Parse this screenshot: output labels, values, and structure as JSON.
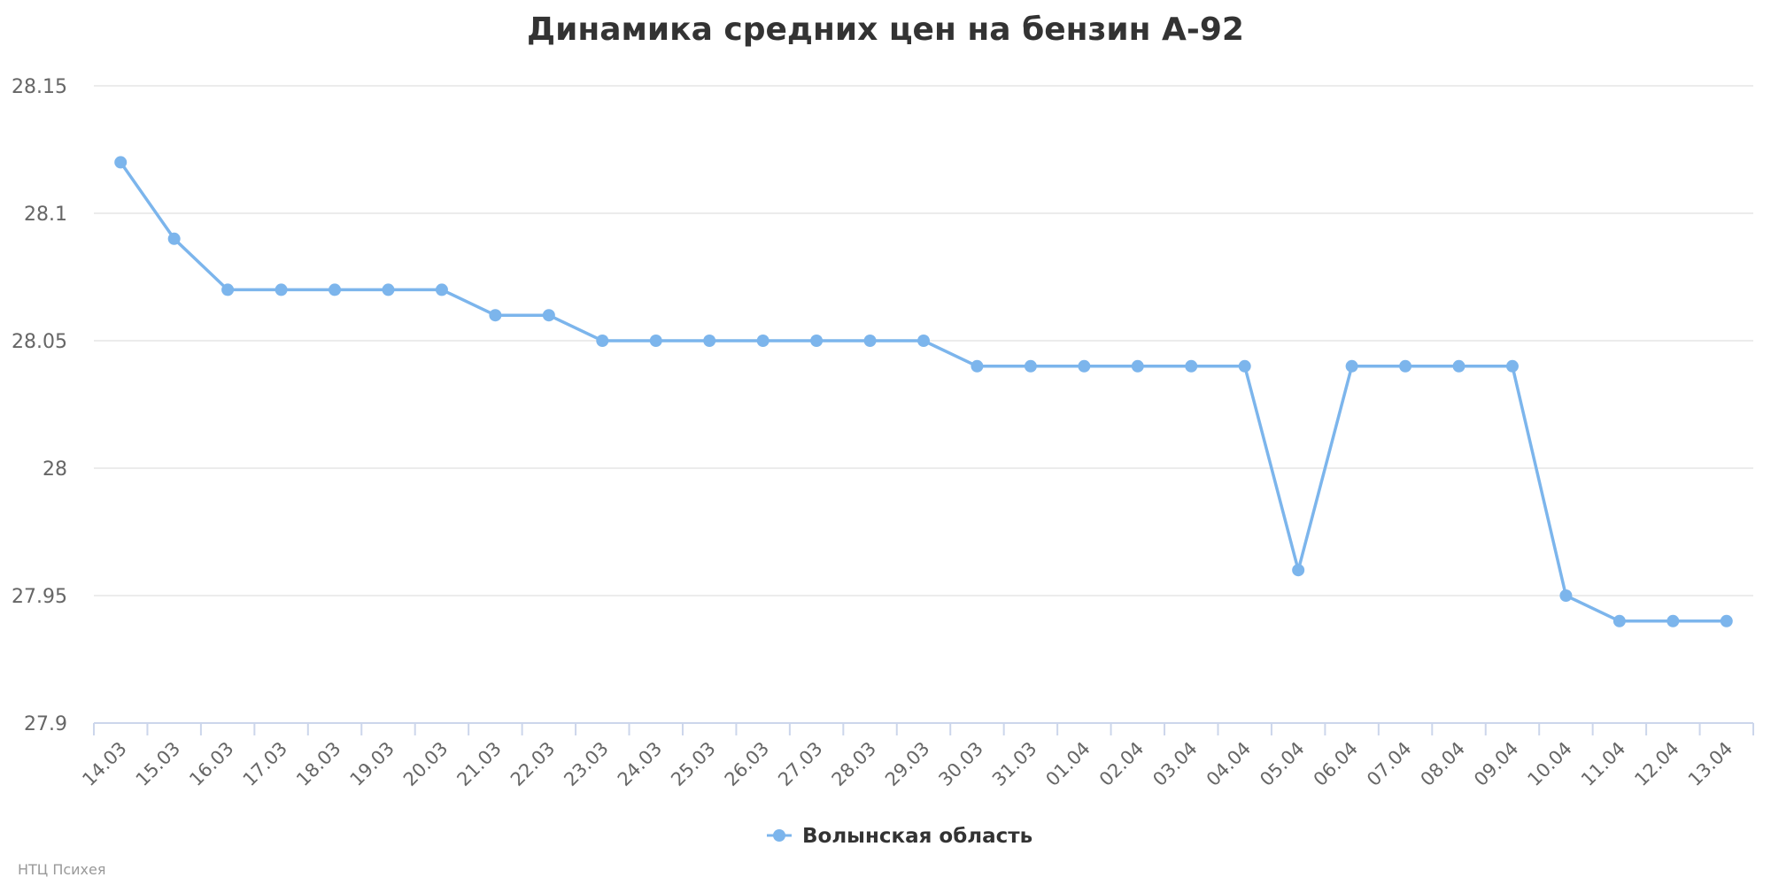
{
  "chart_data": {
    "type": "line",
    "title": "Динамика средних цен на бензин А-92",
    "xlabel": "",
    "ylabel": "",
    "categories": [
      "14.03",
      "15.03",
      "16.03",
      "17.03",
      "18.03",
      "19.03",
      "20.03",
      "21.03",
      "22.03",
      "23.03",
      "24.03",
      "25.03",
      "26.03",
      "27.03",
      "28.03",
      "29.03",
      "30.03",
      "31.03",
      "01.04",
      "02.04",
      "03.04",
      "04.04",
      "05.04",
      "06.04",
      "07.04",
      "08.04",
      "09.04",
      "10.04",
      "11.04",
      "12.04",
      "13.04"
    ],
    "series": [
      {
        "name": "Волынская область",
        "color": "#7cb5ec",
        "values": [
          28.12,
          28.09,
          28.07,
          28.07,
          28.07,
          28.07,
          28.07,
          28.06,
          28.06,
          28.05,
          28.05,
          28.05,
          28.05,
          28.05,
          28.05,
          28.05,
          28.04,
          28.04,
          28.04,
          28.04,
          28.04,
          28.04,
          27.96,
          28.04,
          28.04,
          28.04,
          28.04,
          27.95,
          27.94,
          27.94,
          27.94
        ]
      }
    ],
    "ylim": [
      27.9,
      28.15
    ],
    "yticks": [
      "27.9",
      "27.95",
      "28",
      "28.05",
      "28.1",
      "28.15"
    ],
    "grid": true,
    "legend_position": "bottom-center"
  },
  "credit": "НТЦ Психея"
}
